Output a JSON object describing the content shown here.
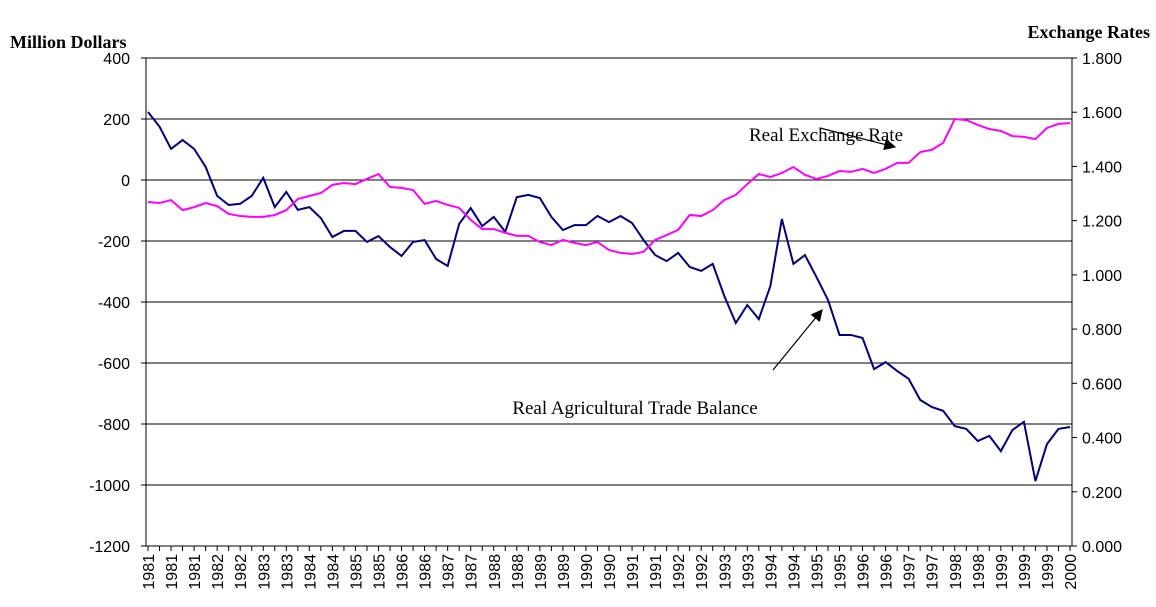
{
  "chart_data": {
    "type": "line",
    "ylabel": "Million Dollars",
    "y2label": "Exchange Rates",
    "categories": [
      "1981",
      null,
      "1981",
      null,
      "1981",
      null,
      "1982",
      null,
      "1982",
      null,
      "1983",
      null,
      "1983",
      null,
      "1984",
      null,
      "1984",
      null,
      "1985",
      null,
      "1985",
      null,
      "1986",
      null,
      "1986",
      null,
      "1987",
      null,
      "1987",
      null,
      "1988",
      null,
      "1988",
      null,
      "1989",
      null,
      "1989",
      null,
      "1990",
      null,
      "1990",
      null,
      "1991",
      null,
      "1991",
      null,
      "1992",
      null,
      "1992",
      null,
      "1993",
      null,
      "1993",
      null,
      "1994",
      null,
      "1994",
      null,
      "1995",
      null,
      "1995",
      null,
      "1996",
      null,
      "1996",
      null,
      "1997",
      null,
      "1997",
      null,
      "1998",
      null,
      "1998",
      null,
      "1999",
      null,
      "1999",
      null,
      "1999",
      null,
      "2000"
    ],
    "series": [
      {
        "name": "Real Agricultural Trade Balance",
        "color": "#000080",
        "axis": "y",
        "values": [
          223,
          175,
          102,
          131,
          102,
          43,
          -52,
          -82,
          -78,
          -52,
          7,
          -89,
          -39,
          -98,
          -89,
          -125,
          -187,
          -167,
          -167,
          -203,
          -184,
          -220,
          -249,
          -203,
          -197,
          -259,
          -282,
          -144,
          -92,
          -151,
          -121,
          -170,
          -56,
          -49,
          -59,
          -121,
          -164,
          -148,
          -148,
          -118,
          -138,
          -118,
          -141,
          -197,
          -246,
          -266,
          -239,
          -285,
          -298,
          -275,
          -380,
          -469,
          -410,
          -456,
          -348,
          -128,
          -275,
          -246,
          -318,
          -393,
          -508,
          -508,
          -518,
          -620,
          -597,
          -626,
          -652,
          -721,
          -744,
          -757,
          -807,
          -816,
          -856,
          -839,
          -889,
          -820,
          -793,
          -987,
          -866,
          -816,
          -810
        ]
      },
      {
        "name": "Real Exchange Rate",
        "color": "#ff00ff",
        "axis": "y2",
        "values": [
          1.269,
          1.265,
          1.276,
          1.239,
          1.25,
          1.265,
          1.254,
          1.225,
          1.217,
          1.214,
          1.214,
          1.221,
          1.239,
          1.28,
          1.291,
          1.302,
          1.332,
          1.339,
          1.335,
          1.354,
          1.372,
          1.324,
          1.321,
          1.313,
          1.262,
          1.273,
          1.258,
          1.247,
          1.203,
          1.169,
          1.169,
          1.155,
          1.144,
          1.144,
          1.121,
          1.11,
          1.129,
          1.118,
          1.11,
          1.121,
          1.092,
          1.081,
          1.077,
          1.085,
          1.129,
          1.147,
          1.166,
          1.221,
          1.217,
          1.239,
          1.276,
          1.295,
          1.335,
          1.372,
          1.361,
          1.376,
          1.398,
          1.369,
          1.354,
          1.365,
          1.383,
          1.38,
          1.391,
          1.376,
          1.391,
          1.413,
          1.413,
          1.453,
          1.461,
          1.487,
          1.575,
          1.571,
          1.553,
          1.538,
          1.531,
          1.512,
          1.509,
          1.501,
          1.542,
          1.557,
          1.56
        ]
      }
    ],
    "ylim": [
      -1200,
      400
    ],
    "yticks": [
      -1200,
      -1000,
      -800,
      -600,
      -400,
      -200,
      0,
      200,
      400
    ],
    "y2lim": [
      0,
      1.8
    ],
    "y2ticks": [
      {
        "value": 0,
        "label": "0.000"
      },
      {
        "value": 0.2,
        "label": "0.200"
      },
      {
        "value": 0.4,
        "label": "0.400"
      },
      {
        "value": 0.6,
        "label": "0.600"
      },
      {
        "value": 0.8,
        "label": "0.800"
      },
      {
        "value": 1,
        "label": "1.000"
      },
      {
        "value": 1.2,
        "label": "1.200"
      },
      {
        "value": 1.4,
        "label": "1.400"
      },
      {
        "value": 1.6,
        "label": "1.600"
      },
      {
        "value": 1.8,
        "label": "1.800"
      }
    ],
    "grid": true,
    "annotations": [
      "Real Exchange Rate",
      "Real Agricultural Trade Balance"
    ]
  }
}
